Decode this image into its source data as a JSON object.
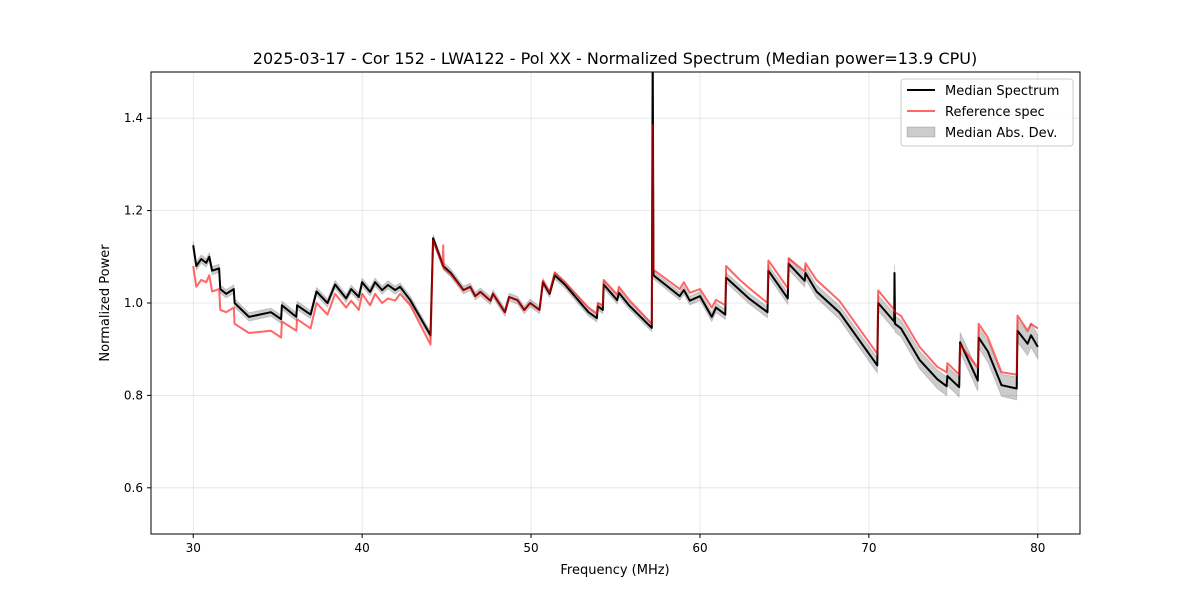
{
  "chart_data": {
    "type": "line",
    "title": "2025-03-17 - Cor 152 - LWA122 - Pol XX - Normalized Spectrum (Median power=13.9 CPU)",
    "xlabel": "Frequency (MHz)",
    "ylabel": "Normalized Power",
    "xlim": [
      27.5,
      82.5
    ],
    "ylim": [
      0.5,
      1.5
    ],
    "xticks": [
      30,
      40,
      50,
      60,
      70,
      80
    ],
    "yticks": [
      0.6,
      0.8,
      1.0,
      1.2,
      1.4
    ],
    "ytick_labels": [
      "0.6",
      "0.8",
      "1.0",
      "1.2",
      "1.4"
    ],
    "grid": true,
    "legend_position": "top-right",
    "legend": [
      "Median Spectrum",
      "Reference spec",
      "Median Abs. Dev."
    ],
    "colors": {
      "median": "#000000",
      "reference": "#ff5a5a",
      "mad": "#c8c8c8"
    },
    "series": [
      {
        "name": "Median Spectrum",
        "points": [
          [
            30,
            1.125
          ],
          [
            30.18,
            1.08
          ],
          [
            30.47,
            1.095
          ],
          [
            30.77,
            1.087
          ],
          [
            30.95,
            1.1
          ],
          [
            31.12,
            1.07
          ],
          [
            31.53,
            1.075
          ],
          [
            31.6,
            1.03
          ],
          [
            31.95,
            1.02
          ],
          [
            32.4,
            1.03
          ],
          [
            32.45,
            1.0
          ],
          [
            33.3,
            0.97
          ],
          [
            34.6,
            0.98
          ],
          [
            35.2,
            0.965
          ],
          [
            35.25,
            0.995
          ],
          [
            36.1,
            0.97
          ],
          [
            36.15,
            0.995
          ],
          [
            36.95,
            0.975
          ],
          [
            37.3,
            1.025
          ],
          [
            37.95,
            1.0
          ],
          [
            38.4,
            1.04
          ],
          [
            39.05,
            1.01
          ],
          [
            39.35,
            1.03
          ],
          [
            39.8,
            1.013
          ],
          [
            40,
            1.045
          ],
          [
            40.47,
            1.024
          ],
          [
            40.77,
            1.045
          ],
          [
            41.18,
            1.028
          ],
          [
            41.53,
            1.039
          ],
          [
            41.95,
            1.028
          ],
          [
            42.25,
            1.035
          ],
          [
            42.85,
            1.006
          ],
          [
            44.05,
            0.93
          ],
          [
            44.2,
            1.14
          ],
          [
            44.8,
            1.08
          ],
          [
            45.25,
            1.065
          ],
          [
            46,
            1.028
          ],
          [
            46.4,
            1.035
          ],
          [
            46.7,
            1.015
          ],
          [
            47,
            1.024
          ],
          [
            47.6,
            1.005
          ],
          [
            47.75,
            1.02
          ],
          [
            48.45,
            0.98
          ],
          [
            48.7,
            1.013
          ],
          [
            49.2,
            1.006
          ],
          [
            49.6,
            0.985
          ],
          [
            49.95,
            1.0
          ],
          [
            50.5,
            0.985
          ],
          [
            50.7,
            1.045
          ],
          [
            51.1,
            1.02
          ],
          [
            51.4,
            1.06
          ],
          [
            52,
            1.04
          ],
          [
            53.4,
            0.98
          ],
          [
            53.9,
            0.967
          ],
          [
            53.95,
            0.993
          ],
          [
            54.25,
            0.985
          ],
          [
            54.3,
            1.04
          ],
          [
            55.1,
            1.006
          ],
          [
            55.2,
            1.022
          ],
          [
            55.8,
            0.995
          ],
          [
            57.15,
            0.946
          ],
          [
            57.2,
            1.55
          ],
          [
            57.25,
            1.06
          ],
          [
            58.8,
            1.015
          ],
          [
            59.05,
            1.028
          ],
          [
            59.4,
            1.005
          ],
          [
            60,
            1.015
          ],
          [
            60.7,
            0.97
          ],
          [
            60.95,
            0.99
          ],
          [
            61.5,
            0.975
          ],
          [
            61.55,
            1.055
          ],
          [
            62.3,
            1.03
          ],
          [
            62.9,
            1.01
          ],
          [
            64,
            0.98
          ],
          [
            64.05,
            1.07
          ],
          [
            65.2,
            1.01
          ],
          [
            65.25,
            1.085
          ],
          [
            66.2,
            1.048
          ],
          [
            66.25,
            1.065
          ],
          [
            66.9,
            1.025
          ],
          [
            68.25,
            0.98
          ],
          [
            70.5,
            0.865
          ],
          [
            70.55,
            1.0
          ],
          [
            71.5,
            0.96
          ],
          [
            71.52,
            1.065
          ],
          [
            71.55,
            0.955
          ],
          [
            71.9,
            0.945
          ],
          [
            73,
            0.877
          ],
          [
            74.05,
            0.835
          ],
          [
            74.6,
            0.82
          ],
          [
            74.65,
            0.842
          ],
          [
            75.35,
            0.818
          ],
          [
            75.4,
            0.915
          ],
          [
            76.45,
            0.832
          ],
          [
            76.5,
            0.925
          ],
          [
            77.05,
            0.895
          ],
          [
            77.85,
            0.822
          ],
          [
            78.75,
            0.815
          ],
          [
            78.8,
            0.94
          ],
          [
            79.4,
            0.912
          ],
          [
            79.6,
            0.93
          ],
          [
            80,
            0.905
          ]
        ]
      },
      {
        "name": "Reference spec",
        "points": [
          [
            30,
            1.08
          ],
          [
            30.18,
            1.035
          ],
          [
            30.47,
            1.05
          ],
          [
            30.77,
            1.045
          ],
          [
            30.95,
            1.06
          ],
          [
            31.12,
            1.025
          ],
          [
            31.53,
            1.03
          ],
          [
            31.6,
            0.985
          ],
          [
            31.95,
            0.98
          ],
          [
            32.4,
            0.99
          ],
          [
            32.45,
            0.955
          ],
          [
            33.3,
            0.935
          ],
          [
            34.6,
            0.94
          ],
          [
            35.2,
            0.925
          ],
          [
            35.25,
            0.96
          ],
          [
            36.1,
            0.94
          ],
          [
            36.15,
            0.965
          ],
          [
            36.95,
            0.945
          ],
          [
            37.3,
            1.0
          ],
          [
            37.95,
            0.975
          ],
          [
            38.4,
            1.02
          ],
          [
            39.05,
            0.99
          ],
          [
            39.35,
            1.005
          ],
          [
            39.8,
            0.985
          ],
          [
            40,
            1.02
          ],
          [
            40.47,
            0.995
          ],
          [
            40.77,
            1.02
          ],
          [
            41.18,
            1.0
          ],
          [
            41.53,
            1.01
          ],
          [
            41.95,
            1.005
          ],
          [
            42.25,
            1.02
          ],
          [
            42.85,
            0.995
          ],
          [
            44.05,
            0.91
          ],
          [
            44.2,
            1.135
          ],
          [
            44.78,
            1.08
          ],
          [
            44.8,
            1.125
          ],
          [
            44.83,
            1.075
          ],
          [
            45.25,
            1.062
          ],
          [
            46,
            1.028
          ],
          [
            46.4,
            1.035
          ],
          [
            46.7,
            1.015
          ],
          [
            47,
            1.024
          ],
          [
            47.6,
            1.005
          ],
          [
            47.75,
            1.02
          ],
          [
            48.45,
            0.98
          ],
          [
            48.7,
            1.013
          ],
          [
            49.2,
            1.006
          ],
          [
            49.6,
            0.985
          ],
          [
            49.95,
            1.0
          ],
          [
            50.5,
            0.985
          ],
          [
            50.7,
            1.048
          ],
          [
            51.1,
            1.023
          ],
          [
            51.4,
            1.066
          ],
          [
            52,
            1.045
          ],
          [
            53.4,
            0.99
          ],
          [
            53.9,
            0.977
          ],
          [
            53.95,
            1.0
          ],
          [
            54.25,
            0.995
          ],
          [
            54.3,
            1.05
          ],
          [
            55.1,
            1.018
          ],
          [
            55.2,
            1.035
          ],
          [
            55.8,
            1.007
          ],
          [
            57.15,
            0.955
          ],
          [
            57.2,
            1.385
          ],
          [
            57.25,
            1.072
          ],
          [
            58.8,
            1.03
          ],
          [
            59.05,
            1.045
          ],
          [
            59.4,
            1.022
          ],
          [
            60,
            1.03
          ],
          [
            60.7,
            0.99
          ],
          [
            60.95,
            1.007
          ],
          [
            61.5,
            0.995
          ],
          [
            61.55,
            1.08
          ],
          [
            62.3,
            1.052
          ],
          [
            62.9,
            1.033
          ],
          [
            64,
            1.0
          ],
          [
            64.05,
            1.092
          ],
          [
            65.2,
            1.032
          ],
          [
            65.25,
            1.097
          ],
          [
            66.2,
            1.068
          ],
          [
            66.25,
            1.086
          ],
          [
            66.9,
            1.05
          ],
          [
            68.25,
            1.005
          ],
          [
            70.5,
            0.89
          ],
          [
            70.55,
            1.027
          ],
          [
            71.5,
            0.985
          ],
          [
            71.55,
            0.98
          ],
          [
            71.9,
            0.972
          ],
          [
            73,
            0.905
          ],
          [
            74.05,
            0.862
          ],
          [
            74.6,
            0.85
          ],
          [
            74.65,
            0.87
          ],
          [
            75.35,
            0.845
          ],
          [
            75.4,
            0.91
          ],
          [
            76.45,
            0.86
          ],
          [
            76.5,
            0.955
          ],
          [
            77.05,
            0.925
          ],
          [
            77.85,
            0.85
          ],
          [
            78.75,
            0.845
          ],
          [
            78.8,
            0.973
          ],
          [
            79.4,
            0.94
          ],
          [
            79.6,
            0.955
          ],
          [
            80,
            0.945
          ]
        ]
      }
    ],
    "mad_band": {
      "name": "Median Abs. Dev.",
      "deviation": [
        [
          30,
          0.009
        ],
        [
          57,
          0.008
        ],
        [
          64,
          0.012
        ],
        [
          70,
          0.016
        ],
        [
          80,
          0.026
        ]
      ]
    }
  }
}
